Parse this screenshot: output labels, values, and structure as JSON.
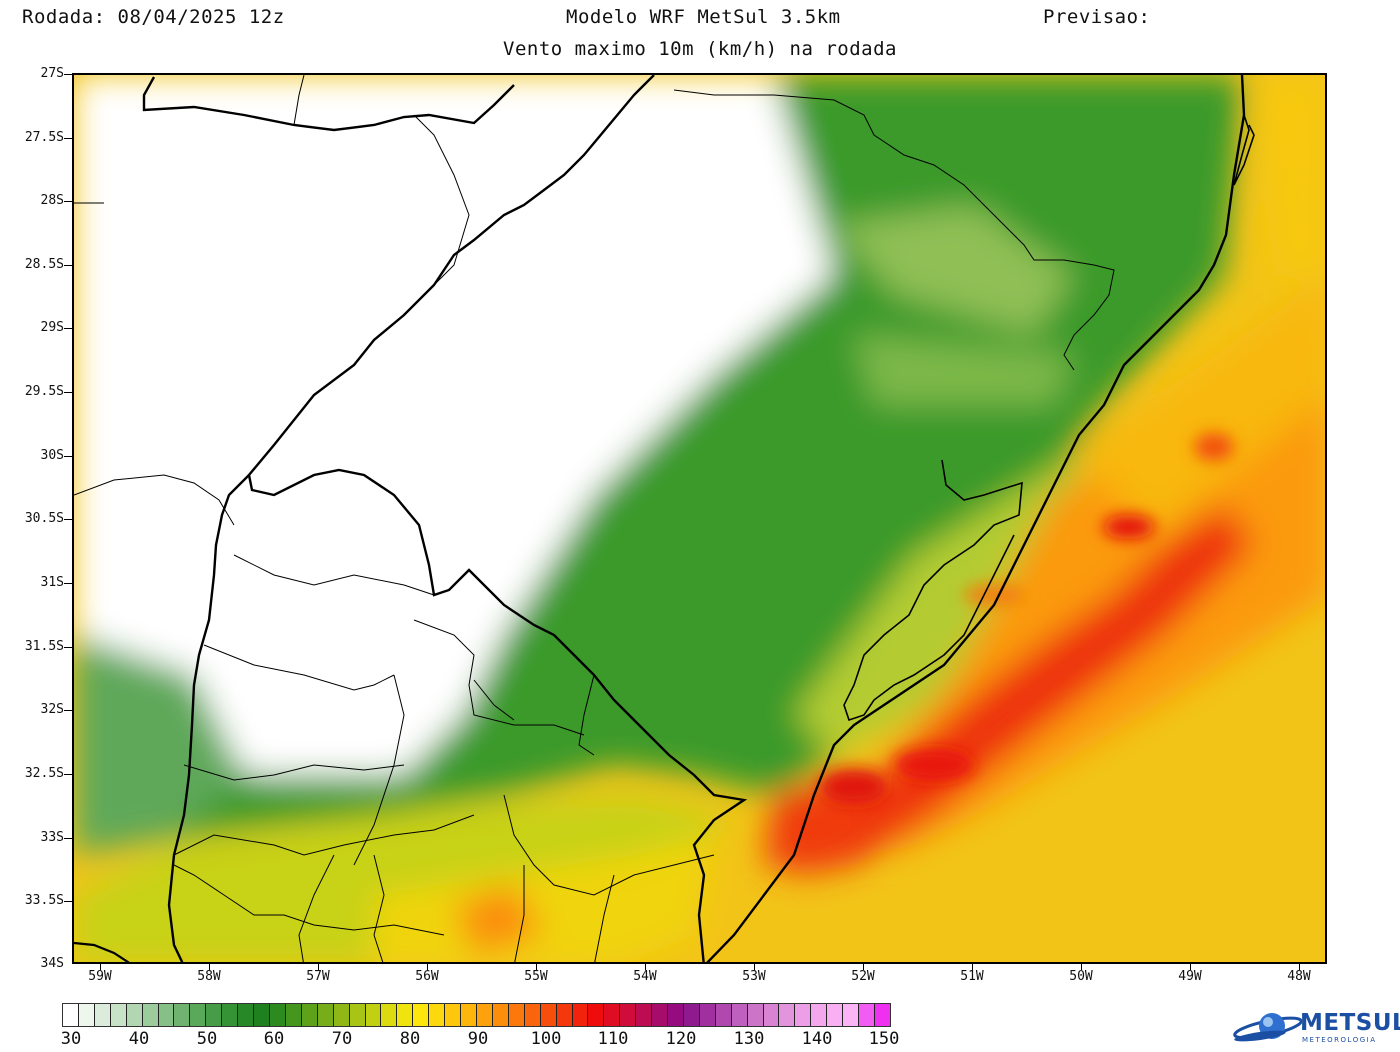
{
  "header": {
    "run": "Rodada: 08/04/2025 12z",
    "model": "Modelo WRF MetSul 3.5km",
    "forecast": "Previsao:",
    "subtitle": "Vento maximo 10m (km/h) na rodada"
  },
  "lat_labels": [
    "27S",
    "27.5S",
    "28S",
    "28.5S",
    "29S",
    "29.5S",
    "30S",
    "30.5S",
    "31S",
    "31.5S",
    "32S",
    "32.5S",
    "33S",
    "33.5S",
    "34S"
  ],
  "lon_labels": [
    "59W",
    "58W",
    "57W",
    "56W",
    "55W",
    "54W",
    "53W",
    "52W",
    "51W",
    "50W",
    "49W",
    "48W"
  ],
  "colorbar": {
    "labels": [
      "30",
      "40",
      "50",
      "60",
      "70",
      "80",
      "90",
      "100",
      "110",
      "120",
      "130",
      "140",
      "150"
    ],
    "colors": [
      "#ffffff",
      "#eef6ee",
      "#dcecdc",
      "#c8e2c8",
      "#b2d6b2",
      "#9ccb9c",
      "#86c086",
      "#70b370",
      "#5aa85a",
      "#479d47",
      "#359235",
      "#278827",
      "#1f801f",
      "#2c8a1e",
      "#44961c",
      "#5ea21a",
      "#77ad18",
      "#8fb816",
      "#a8c414",
      "#c2d012",
      "#dcdb10",
      "#f0e40e",
      "#fce60c",
      "#fdd80c",
      "#fec70c",
      "#feb50c",
      "#fda20c",
      "#fc8e0c",
      "#fb790c",
      "#f9640c",
      "#f74e0c",
      "#f5380c",
      "#f2220c",
      "#ee0c0c",
      "#e00c22",
      "#cf0c3a",
      "#bd0c52",
      "#a80c6a",
      "#960c80",
      "#8f1a8f",
      "#a0309f",
      "#b048af",
      "#c060be",
      "#cc74c8",
      "#d884d2",
      "#e294dc",
      "#ec9ee6",
      "#f3a8ee",
      "#f8b0f2",
      "#fbb4f6",
      "#f25cf2",
      "#f030f0"
    ]
  },
  "logo": {
    "name": "METSUL",
    "tagline": "METEOROLOGIA"
  }
}
